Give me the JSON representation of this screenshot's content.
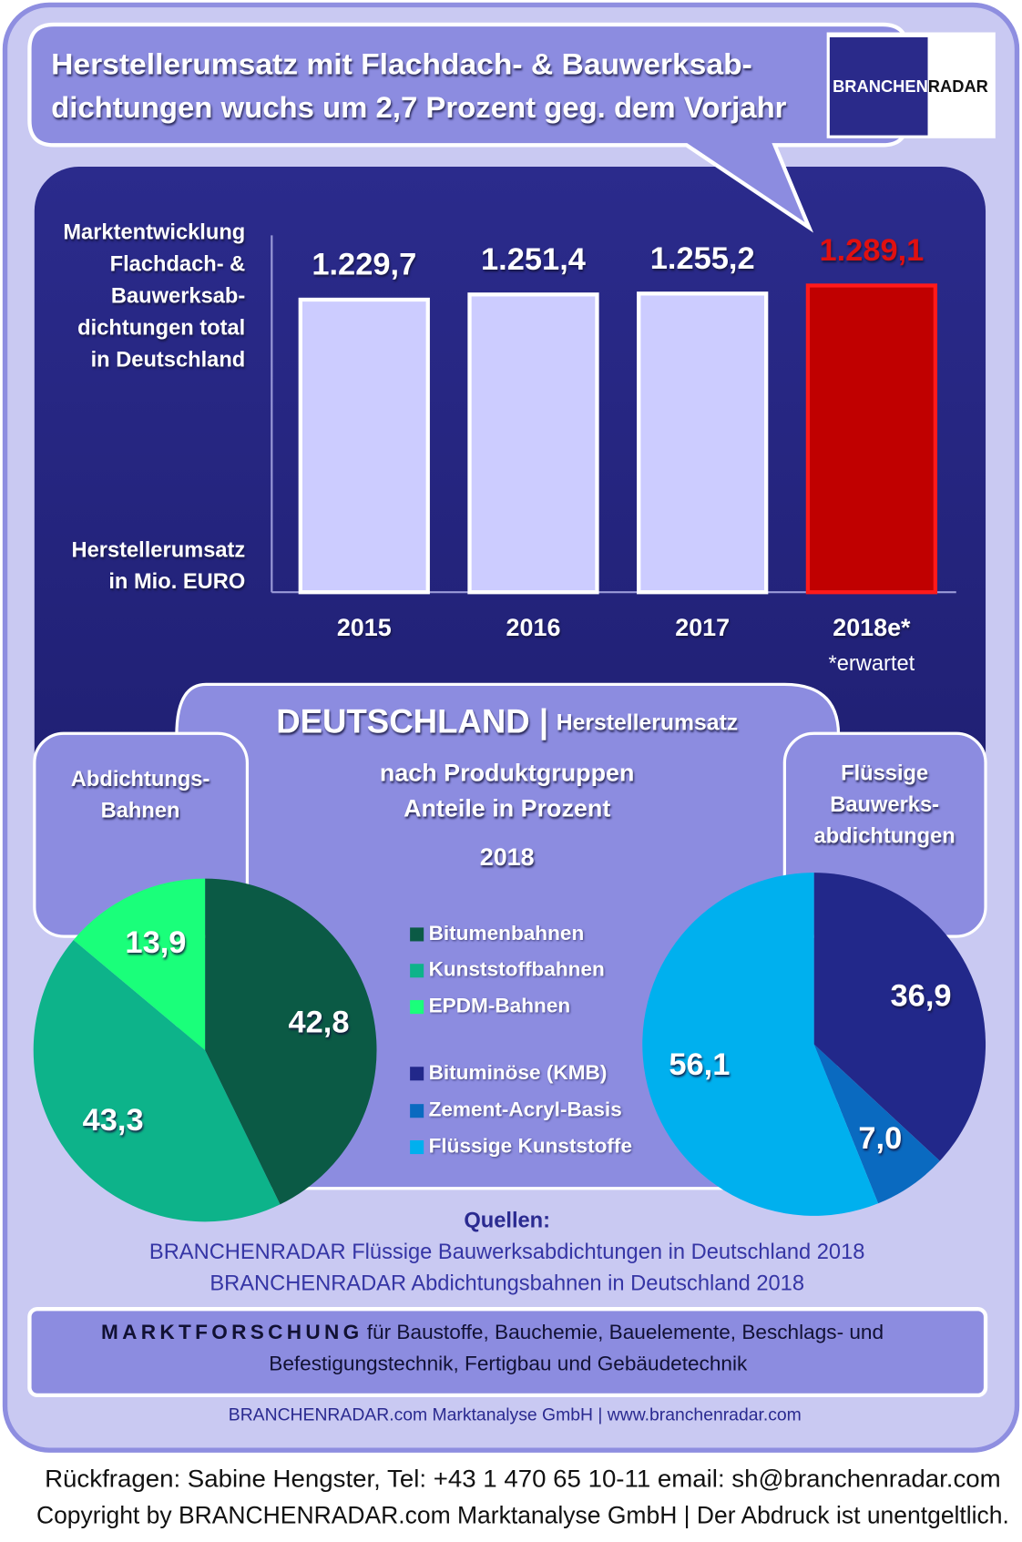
{
  "header": {
    "title": [
      "Herstellerumsatz mit  Flachdach- & Bauwerksab-",
      "dichtungen wuchs um 2,7 Prozent geg. dem Vorjahr"
    ],
    "logo": [
      "BRANCHEN",
      "RADAR"
    ]
  },
  "panel": {
    "heading": "DEUTSCHLAND |",
    "heading_sub": "Herstellerumsatz",
    "lines": [
      "nach Produktgruppen",
      "Anteile in Prozent",
      "2018"
    ]
  },
  "chart_data": [
    {
      "type": "bar",
      "y_label_top": [
        "Marktentwicklung",
        "Flachdach- &",
        "Bauwerksab-",
        "dichtungen total",
        "in Deutschland"
      ],
      "y_label_bottom": [
        "Herstellerumsatz",
        "in Mio. EURO"
      ],
      "categories": [
        "2015",
        "2016",
        "2017",
        "2018e*"
      ],
      "note": "*erwartet",
      "values": [
        1229.7,
        1251.4,
        1255.2,
        1289.1
      ],
      "value_labels": [
        "1.229,7",
        "1.251,4",
        "1.255,2",
        "1.289,1"
      ],
      "colors": [
        "#ccccff",
        "#ccccff",
        "#ccccff",
        "#c00000"
      ],
      "value_label_colors": [
        "#ffffff",
        "#ffffff",
        "#ffffff",
        "#e01010"
      ],
      "ylim": [
        0,
        1500
      ]
    },
    {
      "type": "pie",
      "title": [
        "Abdichtungs-",
        "Bahnen"
      ],
      "categories": [
        "Bitumenbahnen",
        "Kunststoffbahnen",
        "EPDM-Bahnen"
      ],
      "values": [
        42.8,
        43.3,
        13.9
      ],
      "value_labels": [
        "42,8",
        "43,3",
        "13,9"
      ],
      "colors": [
        "#0b5a45",
        "#0db38a",
        "#1aff7a"
      ]
    },
    {
      "type": "pie",
      "title": [
        "Flüssige",
        "Bauwerks-",
        "abdichtungen"
      ],
      "categories": [
        "Bituminöse (KMB)",
        "Zement-Acryl-Basis",
        "Flüssige Kunststoffe"
      ],
      "values": [
        36.9,
        7.0,
        56.1
      ],
      "value_labels": [
        "36,9",
        "7,0",
        "56,1"
      ],
      "colors": [
        "#22288a",
        "#0a6ac0",
        "#00b0ee"
      ]
    }
  ],
  "sources": {
    "label": "Quellen:",
    "lines": [
      "BRANCHENRADAR Flüssige Bauwerksabdichtungen in Deutschland 2018",
      "BRANCHENRADAR Abdichtungsbahnen in Deutschland 2018"
    ]
  },
  "tagline": {
    "lead": "MARKTFORSCHUNG",
    "text": [
      "für Baustoffe, Bauchemie, Bauelemente, Beschlags- und",
      "Befestigungstechnik, Fertigbau und Gebäudetechnik"
    ]
  },
  "footer": {
    "company": "BRANCHENRADAR.com Marktanalyse GmbH | www.branchenradar.com",
    "contact": [
      "Rückfragen: Sabine Hengster, Tel: +43 1 470 65 10-11 email: sh@branchenradar.com",
      "Copyright by BRANCHENRADAR.com  Marktanalyse GmbH | Der Abdruck ist unentgeltlich."
    ]
  }
}
